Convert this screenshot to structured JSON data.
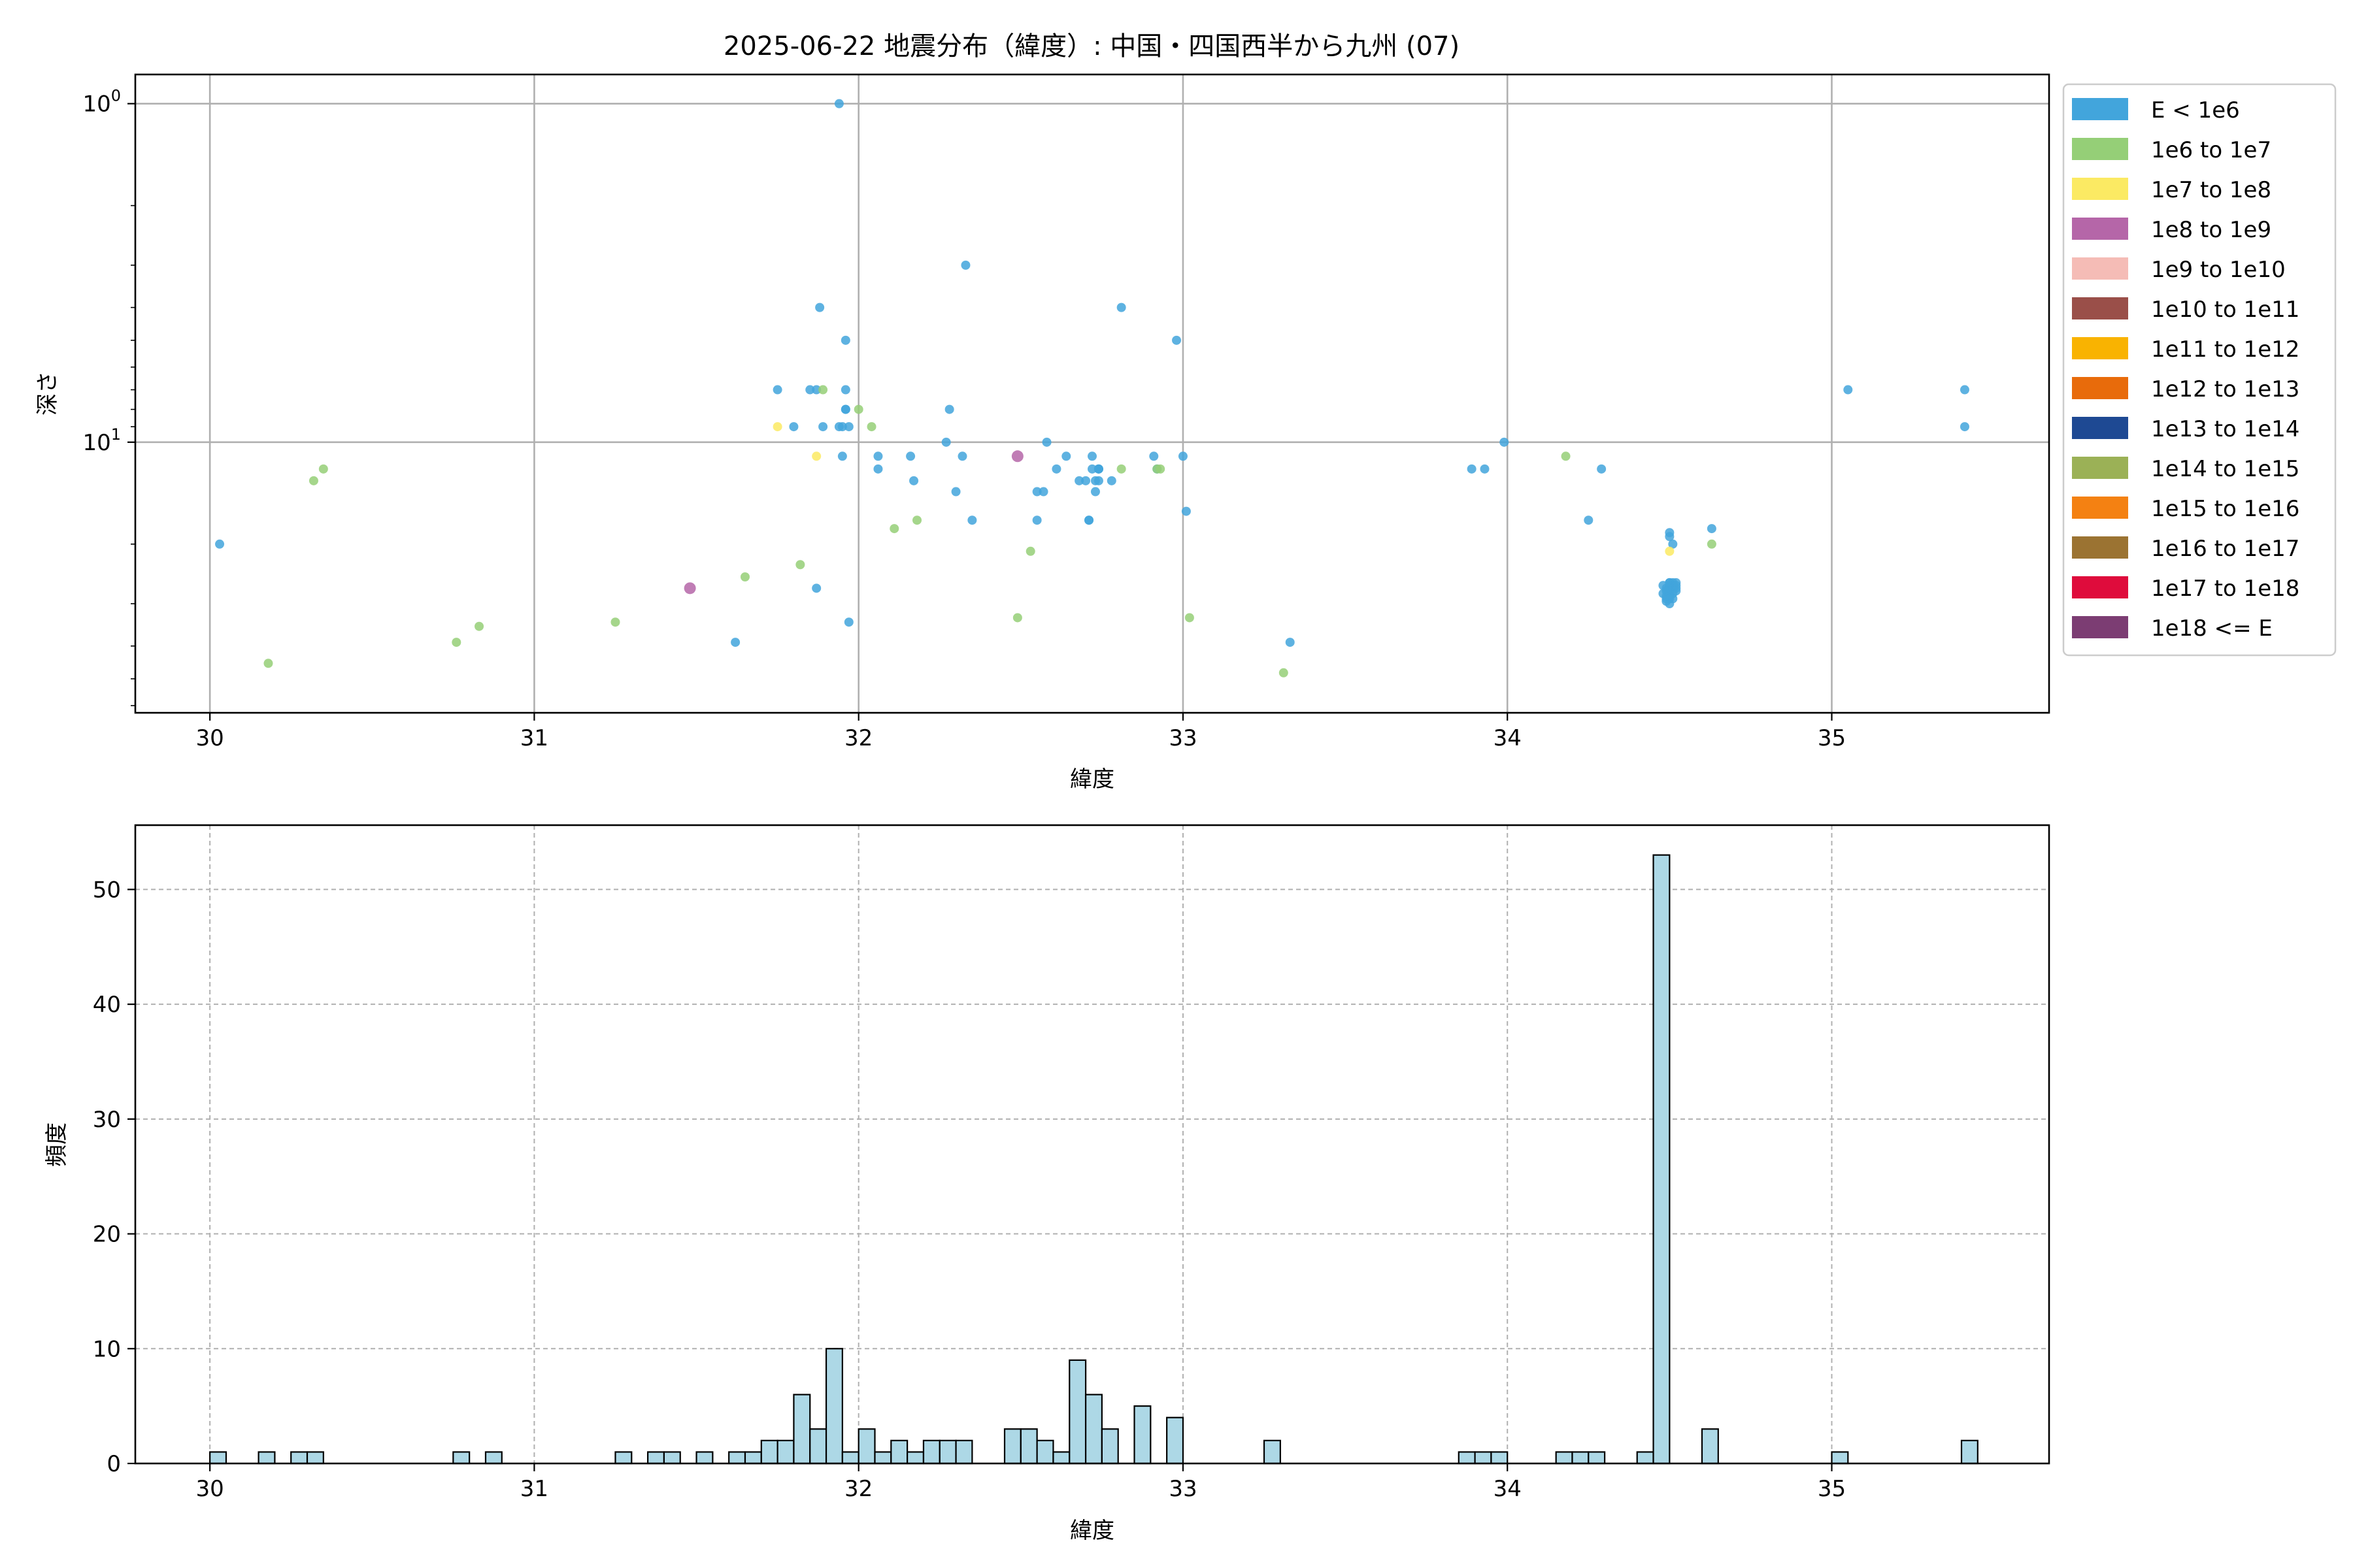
{
  "title": "2025-06-22 地震分布（緯度）: 中国・四国西半から九州 (07)",
  "chart_data": [
    {
      "type": "scatter",
      "xlabel": "緯度",
      "ylabel": "深さ",
      "x_ticks": [
        "30",
        "31",
        "32",
        "33",
        "34",
        "35"
      ],
      "y_ticks": [
        "10^0",
        "10^1"
      ],
      "xlim": [
        29.77,
        35.67
      ],
      "ylim_log": [
        63.0,
        0.82
      ],
      "y_inverted": true,
      "y_scale": "log",
      "grid": true,
      "legend": {
        "placement": "outside-right",
        "items": [
          {
            "label": "E < 1e6",
            "color": "#42a5dc"
          },
          {
            "label": "1e6 to 1e7",
            "color": "#95cf77"
          },
          {
            "label": "1e7 to 1e8",
            "color": "#fbea63"
          },
          {
            "label": "1e8 to 1e9",
            "color": "#b566a8"
          },
          {
            "label": "1e9 to 1e10",
            "color": "#f5bcb6"
          },
          {
            "label": "1e10 to 1e11",
            "color": "#9a4f49"
          },
          {
            "label": "1e11 to 1e12",
            "color": "#f9b301"
          },
          {
            "label": "1e12 to 1e13",
            "color": "#e86b0b"
          },
          {
            "label": "1e13 to 1e14",
            "color": "#1e4993"
          },
          {
            "label": "1e14 to 1e15",
            "color": "#9bb156"
          },
          {
            "label": "1e15 to 1e16",
            "color": "#f48112"
          },
          {
            "label": "1e16 to 1e17",
            "color": "#9b7332"
          },
          {
            "label": "1e17 to 1e18",
            "color": "#df0c3c"
          },
          {
            "label": "1e18 <= E",
            "color": "#7c3d73"
          }
        ]
      },
      "series": [
        {
          "class": 0,
          "points": [
            [
              30.03,
              20.0
            ],
            [
              31.62,
              39.0
            ],
            [
              31.75,
              7.0
            ],
            [
              31.8,
              9.0
            ],
            [
              31.85,
              7.0
            ],
            [
              31.87,
              7.0
            ],
            [
              31.87,
              27.0
            ],
            [
              31.88,
              4.0
            ],
            [
              31.89,
              9.0
            ],
            [
              31.94,
              1.0
            ],
            [
              31.94,
              9.0
            ],
            [
              31.95,
              11.0
            ],
            [
              31.95,
              9.0
            ],
            [
              31.96,
              8.0
            ],
            [
              31.96,
              8.0
            ],
            [
              31.96,
              7.0
            ],
            [
              31.96,
              5.0
            ],
            [
              31.97,
              9.0
            ],
            [
              31.97,
              34.0
            ],
            [
              32.06,
              11.0
            ],
            [
              32.06,
              12.0
            ],
            [
              32.16,
              11.0
            ],
            [
              32.17,
              13.0
            ],
            [
              32.27,
              10.0
            ],
            [
              32.28,
              8.0
            ],
            [
              32.3,
              14.0
            ],
            [
              32.32,
              11.0
            ],
            [
              32.33,
              3.0
            ],
            [
              32.35,
              17.0
            ],
            [
              32.55,
              17.0
            ],
            [
              32.55,
              14.0
            ],
            [
              32.57,
              14.0
            ],
            [
              32.58,
              10.0
            ],
            [
              32.61,
              12.0
            ],
            [
              32.64,
              11.0
            ],
            [
              32.68,
              13.0
            ],
            [
              32.7,
              13.0
            ],
            [
              32.71,
              17.0
            ],
            [
              32.71,
              17.0
            ],
            [
              32.72,
              11.0
            ],
            [
              32.72,
              12.0
            ],
            [
              32.73,
              13.0
            ],
            [
              32.73,
              14.0
            ],
            [
              32.74,
              12.0
            ],
            [
              32.74,
              12.0
            ],
            [
              32.74,
              12.0
            ],
            [
              32.74,
              13.0
            ],
            [
              32.78,
              13.0
            ],
            [
              32.81,
              4.0
            ],
            [
              32.91,
              11.0
            ],
            [
              32.92,
              12.0
            ],
            [
              32.98,
              5.0
            ],
            [
              33.0,
              11.0
            ],
            [
              33.01,
              16.0
            ],
            [
              33.33,
              39.0
            ],
            [
              33.89,
              12.0
            ],
            [
              33.93,
              12.0
            ],
            [
              33.99,
              10.0
            ],
            [
              34.25,
              17.0
            ],
            [
              34.29,
              12.0
            ],
            [
              34.48,
              28.0
            ],
            [
              34.49,
              29.0
            ],
            [
              34.49,
              27.0
            ],
            [
              34.5,
              26.0
            ],
            [
              34.5,
              28.0
            ],
            [
              34.5,
              26.5
            ],
            [
              34.5,
              27.5
            ],
            [
              34.51,
              26.0
            ],
            [
              34.51,
              27.0
            ],
            [
              34.51,
              28.0
            ],
            [
              34.52,
              26.0
            ],
            [
              34.52,
              27.0
            ],
            [
              34.49,
              29.5
            ],
            [
              34.5,
              29.0
            ],
            [
              34.5,
              19.0
            ],
            [
              34.51,
              20.0
            ],
            [
              34.5,
              18.5
            ],
            [
              34.48,
              26.5
            ],
            [
              34.49,
              28.5
            ],
            [
              34.5,
              26.0
            ],
            [
              34.51,
              26.5
            ],
            [
              34.52,
              27.5
            ],
            [
              34.5,
              28.5
            ],
            [
              34.49,
              27.5
            ],
            [
              34.51,
              29.0
            ],
            [
              34.5,
              27.0
            ],
            [
              34.5,
              30.0
            ],
            [
              34.52,
              26.5
            ],
            [
              34.63,
              18.0
            ],
            [
              35.05,
              7.0
            ],
            [
              35.41,
              9.0
            ],
            [
              35.41,
              7.0
            ]
          ]
        },
        {
          "class": 1,
          "points": [
            [
              30.18,
              45.0
            ],
            [
              30.32,
              13.0
            ],
            [
              30.35,
              12.0
            ],
            [
              30.76,
              39.0
            ],
            [
              30.83,
              35.0
            ],
            [
              31.25,
              34.0
            ],
            [
              31.65,
              25.0
            ],
            [
              31.82,
              23.0
            ],
            [
              31.89,
              7.0
            ],
            [
              32.0,
              8.0
            ],
            [
              32.04,
              9.0
            ],
            [
              32.11,
              18.0
            ],
            [
              32.18,
              17.0
            ],
            [
              32.49,
              33.0
            ],
            [
              32.53,
              21.0
            ],
            [
              32.81,
              12.0
            ],
            [
              32.92,
              12.0
            ],
            [
              32.93,
              12.0
            ],
            [
              33.02,
              33.0
            ],
            [
              33.31,
              48.0
            ],
            [
              34.18,
              11.0
            ],
            [
              34.63,
              20.0
            ]
          ]
        },
        {
          "class": 2,
          "points": [
            [
              31.75,
              9.0
            ],
            [
              31.87,
              11.0
            ],
            [
              34.5,
              21.0
            ]
          ]
        },
        {
          "class": 3,
          "points": [
            [
              31.48,
              27.0
            ],
            [
              32.49,
              11.0
            ]
          ]
        }
      ]
    },
    {
      "type": "bar",
      "xlabel": "緯度",
      "ylabel": "頻度",
      "x_ticks": [
        "30",
        "31",
        "32",
        "33",
        "34",
        "35"
      ],
      "y_ticks": [
        "0",
        "10",
        "20",
        "30",
        "40",
        "50"
      ],
      "xlim": [
        29.77,
        35.67
      ],
      "ylim": [
        0,
        55.6
      ],
      "grid": true,
      "bar_color": "#add8e6",
      "bin_start": 30.0,
      "bin_width": 0.05,
      "bins": [
        [
          30.0,
          1
        ],
        [
          30.15,
          1
        ],
        [
          30.25,
          1
        ],
        [
          30.3,
          1
        ],
        [
          30.75,
          1
        ],
        [
          30.85,
          1
        ],
        [
          31.25,
          1
        ],
        [
          31.35,
          1
        ],
        [
          31.4,
          1
        ],
        [
          31.5,
          1
        ],
        [
          31.6,
          1
        ],
        [
          31.65,
          1
        ],
        [
          31.7,
          2
        ],
        [
          31.75,
          2
        ],
        [
          31.8,
          6
        ],
        [
          31.85,
          3
        ],
        [
          31.9,
          10
        ],
        [
          31.95,
          1
        ],
        [
          32.0,
          3
        ],
        [
          32.05,
          1
        ],
        [
          32.1,
          2
        ],
        [
          32.15,
          1
        ],
        [
          32.2,
          2
        ],
        [
          32.25,
          2
        ],
        [
          32.3,
          2
        ],
        [
          32.45,
          3
        ],
        [
          32.5,
          3
        ],
        [
          32.55,
          2
        ],
        [
          32.6,
          1
        ],
        [
          32.65,
          9
        ],
        [
          32.7,
          6
        ],
        [
          32.75,
          3
        ],
        [
          32.85,
          5
        ],
        [
          32.95,
          4
        ],
        [
          33.25,
          2
        ],
        [
          33.85,
          1
        ],
        [
          33.9,
          1
        ],
        [
          33.95,
          1
        ],
        [
          34.15,
          1
        ],
        [
          34.2,
          1
        ],
        [
          34.25,
          1
        ],
        [
          34.4,
          1
        ],
        [
          34.45,
          53
        ],
        [
          34.6,
          3
        ],
        [
          35.0,
          1
        ],
        [
          35.4,
          2
        ]
      ]
    }
  ]
}
